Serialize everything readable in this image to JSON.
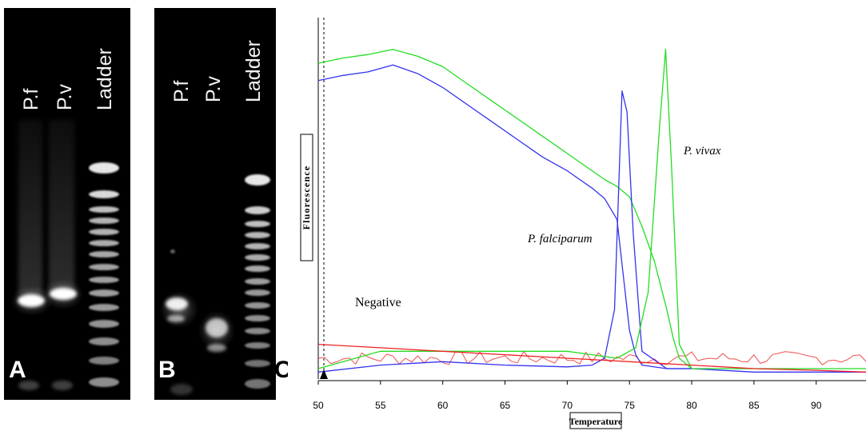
{
  "panels": [
    {
      "letter": "A",
      "lanes": [
        "P.f",
        "P.v",
        "Ladder"
      ]
    },
    {
      "letter": "B",
      "lanes": [
        "P.f",
        "P.v",
        "Ladder"
      ]
    },
    {
      "letter": "C"
    }
  ],
  "chart_data": {
    "type": "line",
    "xlabel": "Temperature",
    "ylabel": "Fluorescence",
    "xlim": [
      50,
      94
    ],
    "xticks": [
      50,
      55,
      60,
      65,
      70,
      75,
      80,
      85,
      90
    ],
    "ylim": [
      0,
      100
    ],
    "annotations": [
      "P. vivax",
      "P. falciparum",
      "Negative"
    ],
    "colors": {
      "p_vivax": "#22dd22",
      "p_falciparum": "#3333ee",
      "negative": "#ee2222"
    },
    "series": [
      {
        "color": "green",
        "role": "fluorescence",
        "x": [
          50,
          52,
          54,
          56,
          58,
          60,
          62,
          64,
          66,
          68,
          70,
          72,
          73,
          74,
          75,
          76,
          77,
          78,
          78.5,
          79,
          80
        ],
        "y": [
          91,
          92.5,
          93.5,
          95,
          93,
          90,
          85,
          80,
          75,
          70,
          65,
          60,
          57.5,
          55.5,
          52.5,
          44,
          34,
          20,
          12,
          6,
          3
        ]
      },
      {
        "color": "blue",
        "role": "fluorescence",
        "x": [
          50,
          52,
          54,
          56,
          58,
          60,
          62,
          64,
          66,
          68,
          70,
          72,
          73,
          74,
          74.5,
          75,
          75.5,
          76,
          78,
          80
        ],
        "y": [
          86,
          87.5,
          88.5,
          90.5,
          88,
          84,
          79,
          74,
          69,
          64,
          60,
          55,
          52,
          46,
          30,
          14,
          7,
          4,
          3,
          3
        ]
      },
      {
        "color": "blue",
        "role": "derivative",
        "x": [
          50,
          55,
          60,
          65,
          70,
          72,
          73,
          73.8,
          74.4,
          74.8,
          75.3,
          76,
          78,
          80,
          85,
          90,
          94
        ],
        "y": [
          2,
          4,
          5,
          4,
          3.5,
          4,
          6,
          20,
          83,
          77,
          42,
          8,
          3,
          3,
          2,
          2,
          2
        ]
      },
      {
        "color": "green",
        "role": "derivative",
        "x": [
          50,
          55,
          60,
          65,
          70,
          72,
          74,
          75.5,
          76.5,
          77.4,
          77.9,
          78.4,
          79,
          80,
          85,
          90,
          94
        ],
        "y": [
          3,
          8,
          8,
          8,
          8,
          7,
          6,
          9,
          25,
          72,
          95,
          60,
          10,
          3,
          3,
          3,
          3
        ]
      },
      {
        "color": "red",
        "role": "negative",
        "x": [
          50,
          55,
          60,
          65,
          70,
          75,
          80,
          85,
          90,
          94
        ],
        "y": [
          10,
          9,
          8,
          7,
          6,
          5,
          4,
          3,
          2.5,
          2
        ]
      }
    ]
  }
}
